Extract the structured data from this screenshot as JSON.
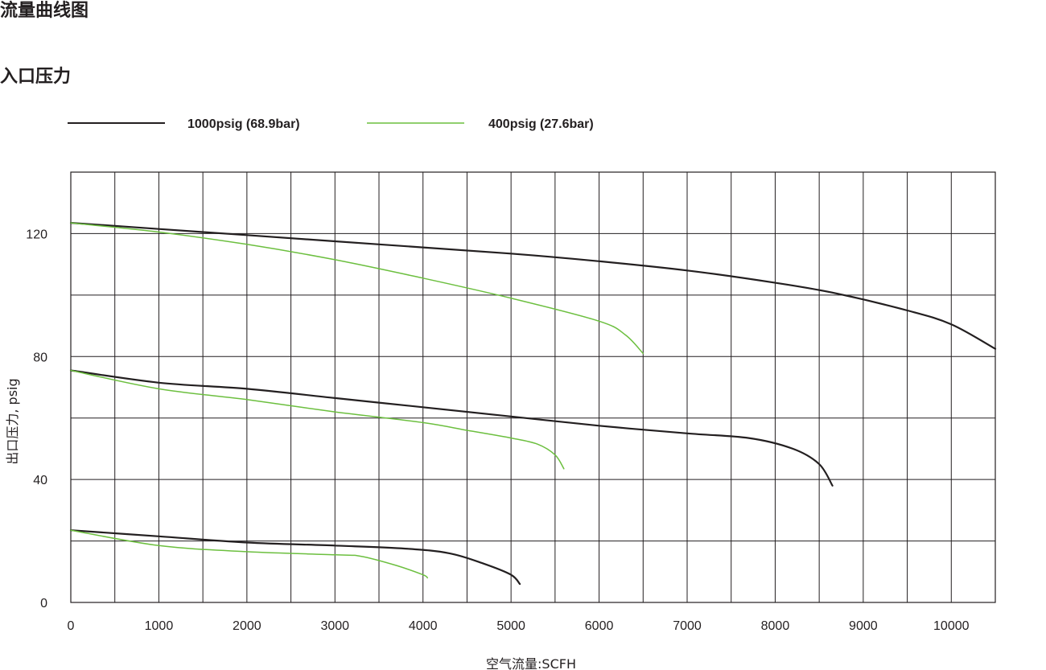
{
  "page": {
    "title": "流量曲线图",
    "subtitle": "入口压力"
  },
  "colors": {
    "series_1000": "#231f20",
    "series_400": "#6cbf3f",
    "grid": "#231f20"
  },
  "chart_data": {
    "type": "line",
    "title": "流量曲线图",
    "subtitle": "入口压力",
    "xlabel": "空气流量:SCFH",
    "ylabel": "出口压力, psig",
    "xlim": [
      0,
      10500
    ],
    "ylim": [
      0,
      140
    ],
    "xticks": [
      0,
      1000,
      2000,
      3000,
      4000,
      5000,
      6000,
      7000,
      8000,
      9000,
      10000
    ],
    "xtick_labels": [
      "0",
      "1000",
      "2000",
      "3000",
      "4000",
      "5000",
      "6000",
      "7000",
      "8000",
      "9000",
      "10000"
    ],
    "yticks": [
      0,
      40,
      80,
      120
    ],
    "ytick_labels": [
      "0",
      "40",
      "80",
      "120"
    ],
    "grid": true,
    "legend_position": "top",
    "legend": [
      {
        "label": "1000psig (68.9bar)",
        "color": "#231f20"
      },
      {
        "label": "400psig (27.6bar)",
        "color": "#6cbf3f"
      }
    ],
    "series": [
      {
        "name": "1000psig (68.9bar)",
        "color": "#231f20",
        "x": [
          0,
          1000,
          2000,
          3000,
          4000,
          5000,
          6000,
          7000,
          8000,
          8700,
          9500,
          10000,
          10500
        ],
        "y": [
          123.5,
          121.5,
          119.5,
          117.5,
          115.5,
          113.5,
          111,
          108,
          104,
          100.5,
          95,
          90.5,
          82.5
        ]
      },
      {
        "name": "400psig (27.6bar)",
        "color": "#6cbf3f",
        "x": [
          0,
          1000,
          2000,
          3000,
          4000,
          5000,
          6000,
          6300,
          6500
        ],
        "y": [
          123.5,
          120.5,
          116.5,
          111.5,
          105.5,
          99,
          91.5,
          87,
          81
        ]
      },
      {
        "name": "1000psig (68.9bar)",
        "color": "#231f20",
        "x": [
          0,
          1000,
          2000,
          3000,
          4000,
          5000,
          6000,
          7000,
          7700,
          8200,
          8500,
          8650
        ],
        "y": [
          75.5,
          71.5,
          69.5,
          66.5,
          63.5,
          60.5,
          57.5,
          55,
          53.5,
          50,
          45,
          38
        ]
      },
      {
        "name": "400psig (27.6bar)",
        "color": "#6cbf3f",
        "x": [
          0,
          1000,
          2000,
          3000,
          4000,
          4500,
          5000,
          5300,
          5500,
          5600
        ],
        "y": [
          75.5,
          69.5,
          66,
          62,
          58.5,
          56,
          53.5,
          51.5,
          48,
          43.5
        ]
      },
      {
        "name": "1000psig (68.9bar)",
        "color": "#231f20",
        "x": [
          0,
          1000,
          2000,
          3000,
          3800,
          4300,
          4700,
          5000,
          5100
        ],
        "y": [
          23.5,
          21.5,
          19.5,
          18.5,
          17.5,
          16,
          12.5,
          9,
          6
        ]
      },
      {
        "name": "400psig (27.6bar)",
        "color": "#6cbf3f",
        "x": [
          0,
          1000,
          2000,
          3000,
          3300,
          3700,
          4000,
          4050
        ],
        "y": [
          23.5,
          18.5,
          16.5,
          15.5,
          15,
          12,
          9,
          8
        ]
      }
    ]
  }
}
